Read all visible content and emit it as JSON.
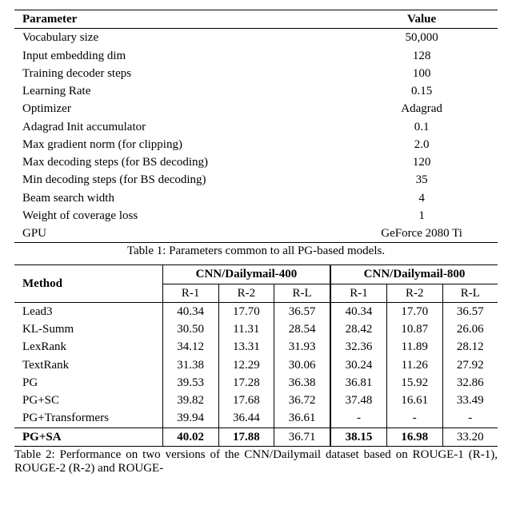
{
  "table1": {
    "headers": {
      "param": "Parameter",
      "value": "Value"
    },
    "rows": [
      {
        "param": "Vocabulary size",
        "value": "50,000"
      },
      {
        "param": "Input embedding dim",
        "value": "128"
      },
      {
        "param": "Training decoder steps",
        "value": "100"
      },
      {
        "param": "Learning Rate",
        "value": "0.15"
      },
      {
        "param": "Optimizer",
        "value": "Adagrad"
      },
      {
        "param": "Adagrad Init accumulator",
        "value": "0.1"
      },
      {
        "param": "Max gradient norm (for clipping)",
        "value": "2.0"
      },
      {
        "param": "Max decoding steps (for BS decoding)",
        "value": "120"
      },
      {
        "param": "Min decoding steps (for BS decoding)",
        "value": "35"
      },
      {
        "param": "Beam search width",
        "value": "4"
      },
      {
        "param": "Weight of coverage loss",
        "value": "1"
      },
      {
        "param": "GPU",
        "value": "GeForce 2080 Ti"
      }
    ],
    "caption": "Table 1: Parameters common to all PG-based models."
  },
  "table2": {
    "method_header": "Method",
    "datasets": [
      {
        "name": "CNN/Dailymail-400",
        "sub": [
          "R-1",
          "R-2",
          "R-L"
        ]
      },
      {
        "name": "CNN/Dailymail-800",
        "sub": [
          "R-1",
          "R-2",
          "R-L"
        ]
      }
    ],
    "rows": [
      {
        "method": "Lead3",
        "d400": [
          "40.34",
          "17.70",
          "36.57"
        ],
        "d800": [
          "40.34",
          "17.70",
          "36.57"
        ],
        "bold": []
      },
      {
        "method": "KL-Summ",
        "d400": [
          "30.50",
          "11.31",
          "28.54"
        ],
        "d800": [
          "28.42",
          "10.87",
          "26.06"
        ],
        "bold": []
      },
      {
        "method": "LexRank",
        "d400": [
          "34.12",
          "13.31",
          "31.93"
        ],
        "d800": [
          "32.36",
          "11.89",
          "28.12"
        ],
        "bold": []
      },
      {
        "method": "TextRank",
        "d400": [
          "31.38",
          "12.29",
          "30.06"
        ],
        "d800": [
          "30.24",
          "11.26",
          "27.92"
        ],
        "bold": []
      },
      {
        "method": "PG",
        "d400": [
          "39.53",
          "17.28",
          "36.38"
        ],
        "d800": [
          "36.81",
          "15.92",
          "32.86"
        ],
        "bold": []
      },
      {
        "method": "PG+SC",
        "d400": [
          "39.82",
          "17.68",
          "36.72"
        ],
        "d800": [
          "37.48",
          "16.61",
          "33.49"
        ],
        "bold": []
      },
      {
        "method": "PG+Transformers",
        "d400": [
          "39.94",
          "36.44",
          "36.61"
        ],
        "d800": [
          "-",
          "-",
          "-"
        ],
        "bold": []
      },
      {
        "method": "PG+SA",
        "d400": [
          "40.02",
          "17.88",
          "36.71"
        ],
        "d800": [
          "38.15",
          "16.98",
          "33.20"
        ],
        "bold": [
          "method",
          "d400.0",
          "d400.1",
          "d800.0",
          "d800.1"
        ]
      }
    ],
    "caption": "Table 2:  Performance on two versions of the CNN/Dailymail dataset based on ROUGE-1 (R-1), ROUGE-2 (R-2) and ROUGE-"
  }
}
